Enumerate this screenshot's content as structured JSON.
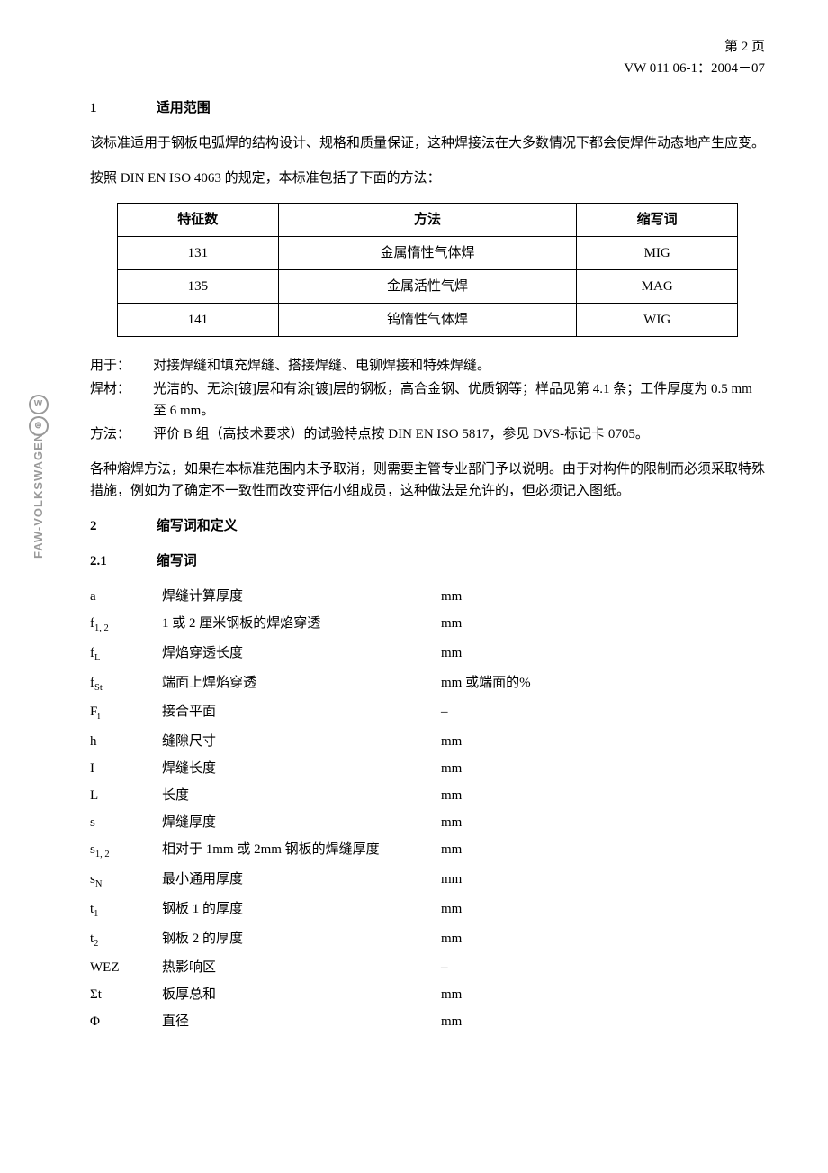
{
  "header": {
    "page": "第 2 页",
    "doc_id": "VW 011 06-1：2004－07"
  },
  "section1": {
    "num": "1",
    "title": "适用范围",
    "para1": "该标准适用于钢板电弧焊的结构设计、规格和质量保证，这种焊接法在大多数情况下都会使焊件动态地产生应变。",
    "para2": "按照 DIN EN ISO 4063 的规定，本标准包括了下面的方法："
  },
  "methods_table": {
    "headers": [
      "特征数",
      "方法",
      "缩写词"
    ],
    "rows": [
      [
        "131",
        "金属惰性气体焊",
        "MIG"
      ],
      [
        "135",
        "金属活性气焊",
        "MAG"
      ],
      [
        "141",
        "钨惰性气体焊",
        "WIG"
      ]
    ]
  },
  "definitions": [
    {
      "label": "用于：",
      "text": "对接焊缝和填充焊缝、搭接焊缝、电铆焊接和特殊焊缝。"
    },
    {
      "label": "焊材：",
      "text": "光洁的、无涂[镀]层和有涂[镀]层的钢板，高合金钢、优质钢等；样品见第 4.1 条；工件厚度为 0.5 mm 至 6 mm。"
    },
    {
      "label": "方法：",
      "text": "评价 B 组（高技术要求）的试验特点按 DIN EN ISO 5817，参见 DVS-标记卡 0705。"
    }
  ],
  "para_after_defs": "各种熔焊方法，如果在本标准范围内未予取消，则需要主管专业部门予以说明。由于对构件的限制而必须采取特殊措施，例如为了确定不一致性而改变评估小组成员，这种做法是允许的，但必须记入图纸。",
  "section2": {
    "num": "2",
    "title": "缩写词和定义"
  },
  "section2_1": {
    "num": "2.1",
    "title": "缩写词"
  },
  "abbreviations": [
    {
      "sym": "a",
      "sub": "",
      "desc": "焊缝计算厚度",
      "unit": "mm"
    },
    {
      "sym": "f",
      "sub": "1, 2",
      "desc": "1 或 2 厘米钢板的焊焰穿透",
      "unit": "mm"
    },
    {
      "sym": "f",
      "sub": "L",
      "desc": "焊焰穿透长度",
      "unit": "mm"
    },
    {
      "sym": "f",
      "sub": "St",
      "desc": "端面上焊焰穿透",
      "unit": "mm 或端面的%"
    },
    {
      "sym": "F",
      "sub": "i",
      "desc": "接合平面",
      "unit": "–"
    },
    {
      "sym": "h",
      "sub": "",
      "desc": "缝隙尺寸",
      "unit": "mm"
    },
    {
      "sym": "I",
      "sub": "",
      "desc": "焊缝长度",
      "unit": "mm"
    },
    {
      "sym": "L",
      "sub": "",
      "desc": "长度",
      "unit": "mm"
    },
    {
      "sym": "s",
      "sub": "",
      "desc": "焊缝厚度",
      "unit": "mm"
    },
    {
      "sym": "s",
      "sub": "1, 2",
      "desc": "相对于 1mm 或 2mm 钢板的焊缝厚度",
      "unit": "mm"
    },
    {
      "sym": "s",
      "sub": "N",
      "desc": "最小通用厚度",
      "unit": "mm"
    },
    {
      "sym": "t",
      "sub": "1",
      "desc": "钢板 1 的厚度",
      "unit": "mm"
    },
    {
      "sym": "t",
      "sub": "2",
      "desc": "钢板 2 的厚度",
      "unit": "mm"
    },
    {
      "sym": "WEZ",
      "sub": "",
      "desc": "热影响区",
      "unit": "–"
    },
    {
      "sym": "Σt",
      "sub": "",
      "desc": "板厚总和",
      "unit": "mm"
    },
    {
      "sym": "Φ",
      "sub": "",
      "desc": "直径",
      "unit": "mm"
    }
  ],
  "watermark": {
    "text": "FAW-VOLKSWAGEN",
    "logo1": "W",
    "logo2": "⊜"
  }
}
